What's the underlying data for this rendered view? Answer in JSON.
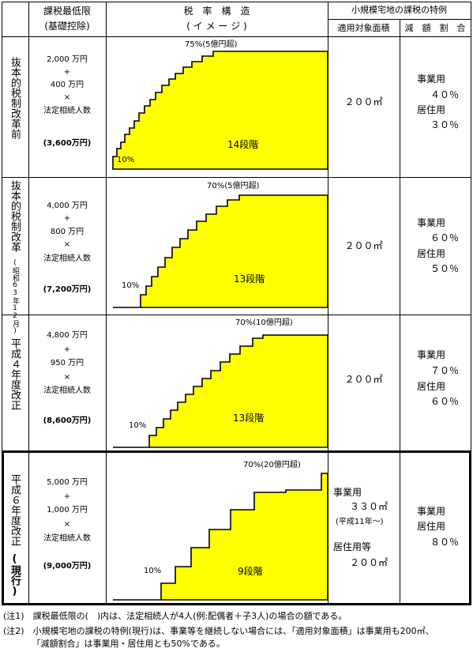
{
  "header": {
    "col_min_line1": "課税最低限",
    "col_min_line2": "(基礎控除)",
    "col_rate_line1": "税　率　構　造",
    "col_rate_line2": "( イ メ ー ジ )",
    "col_special": "小規模宅地の課税の特例",
    "col_area": "適用対象面積",
    "col_reduction": "減　額　割　合"
  },
  "rows": [
    {
      "label": "抜本的税制改革前",
      "base": "2,000 万円",
      "plus": "+",
      "per_heir": "400 万円",
      "times": "×",
      "heirs": "法定相続人数",
      "example": "(3,600万円)",
      "top_rate": "75%(5億円超)",
      "bottom_rate": "10%",
      "steps_label": "14段階",
      "area": "２００㎡",
      "biz_label": "事業用",
      "biz_rate": "４０％",
      "res_label": "居住用",
      "res_rate": "３０％"
    },
    {
      "label": "抜本的税制改革",
      "label_small": "(昭和63年12月)",
      "base": "4,000 万円",
      "plus": "+",
      "per_heir": "800 万円",
      "times": "×",
      "heirs": "法定相続人数",
      "example": "(7,200万円)",
      "top_rate": "70%(5億円超)",
      "bottom_rate": "10%",
      "steps_label": "13段階",
      "area": "２００㎡",
      "biz_label": "事業用",
      "biz_rate": "６０％",
      "res_label": "居住用",
      "res_rate": "５０％"
    },
    {
      "label": "平成４年度改正",
      "base": "4,800 万円",
      "plus": "+",
      "per_heir": "950 万円",
      "times": "×",
      "heirs": "法定相続人数",
      "example": "(8,600万円)",
      "top_rate": "70%(10億円超)",
      "bottom_rate": "10%",
      "steps_label": "13段階",
      "area": "２００㎡",
      "biz_label": "事業用",
      "biz_rate": "７０％",
      "res_label": "居住用",
      "res_rate": "６０％"
    },
    {
      "label": "平成６年度改正",
      "label_current": "(現行)",
      "base": "5,000 万円",
      "plus": "+",
      "per_heir": "1,000 万円",
      "times": "×",
      "heirs": "法定相続人数",
      "example": "(9,000万円)",
      "top_rate": "70%(20億円超)",
      "bottom_rate": "10%",
      "steps_label": "9段階",
      "area_biz_label": "事業用",
      "area_biz": "３３０㎡",
      "area_biz_note": "(平成11年～)",
      "area_res_label": "居住用等",
      "area_res": "２００㎡",
      "biz_label": "事業用",
      "res_label": "居住用",
      "rate_common": "８０％"
    }
  ],
  "notes": [
    "(注1)　課税最低限の(　)内は、法定相続人が4人(例:配偶者＋子3人)の場合の額である。",
    "(注2)　小規模宅地の課税の特例(現行)は、事業等を継続しない場合には、「適用対象面積」は事業用も200㎡、",
    "　　　 「減額割合」は事業用・居住用とも50%である。"
  ],
  "colors": {
    "step_fill": "#ffff00",
    "line": "#000000"
  }
}
